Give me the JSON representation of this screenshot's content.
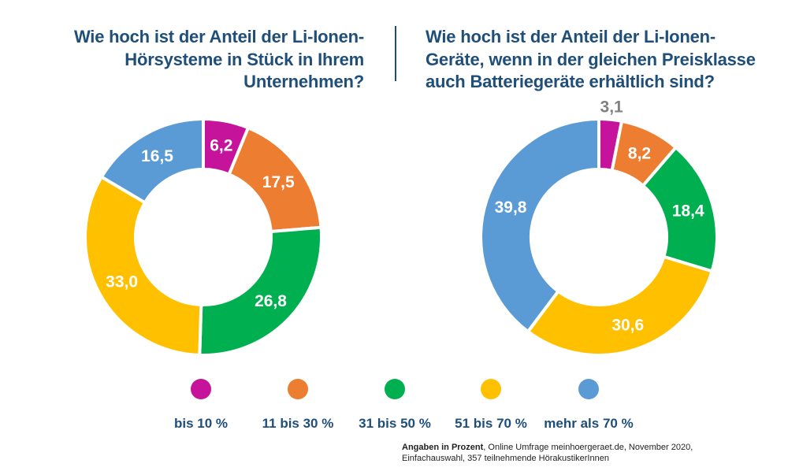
{
  "titles": {
    "left": "Wie hoch ist der Anteil der Li-Ionen-Hörsysteme in Stück in Ihrem Unternehmen?",
    "right": "Wie hoch ist der Anteil der Li-Ionen-Geräte, wenn in der gleichen Preisklasse auch Batteriegeräte erhältlich sind?"
  },
  "legend": [
    {
      "label": "bis 10 %",
      "color": "#c6139c"
    },
    {
      "label": "11 bis 30 %",
      "color": "#ed7d31"
    },
    {
      "label": "31 bis 50 %",
      "color": "#00b050"
    },
    {
      "label": "51 bis 70 %",
      "color": "#ffc000"
    },
    {
      "label": "mehr als 70 %",
      "color": "#5b9bd5"
    }
  ],
  "footnote": {
    "bold": "Angaben in Prozent",
    "text": ", Online Umfrage meinhoergeraet.de, November 2020, Einfachauswahl, 357 teilnehmende HörakustikerInnen"
  },
  "chart_data": [
    {
      "type": "pie",
      "variant": "donut",
      "title": "Wie hoch ist der Anteil der Li-Ionen-Hörsysteme in Stück in Ihrem Unternehmen?",
      "categories": [
        "bis 10 %",
        "11 bis 30 %",
        "31 bis 50 %",
        "51 bis 70 %",
        "mehr als 70 %"
      ],
      "values": [
        6.2,
        17.5,
        26.8,
        33.0,
        16.5
      ],
      "labels": [
        "6,2",
        "17,5",
        "26,8",
        "33,0",
        "16,5"
      ]
    },
    {
      "type": "pie",
      "variant": "donut",
      "title": "Wie hoch ist der Anteil der Li-Ionen-Geräte, wenn in der gleichen Preisklasse auch Batteriegeräte erhältlich sind?",
      "categories": [
        "bis 10 %",
        "11 bis 30 %",
        "31 bis 50 %",
        "51 bis 70 %",
        "mehr als 70 %"
      ],
      "values": [
        3.1,
        8.2,
        18.4,
        30.6,
        39.8
      ],
      "labels": [
        "3,1",
        "8,2",
        "18,4",
        "30,6",
        "39,8"
      ]
    }
  ]
}
